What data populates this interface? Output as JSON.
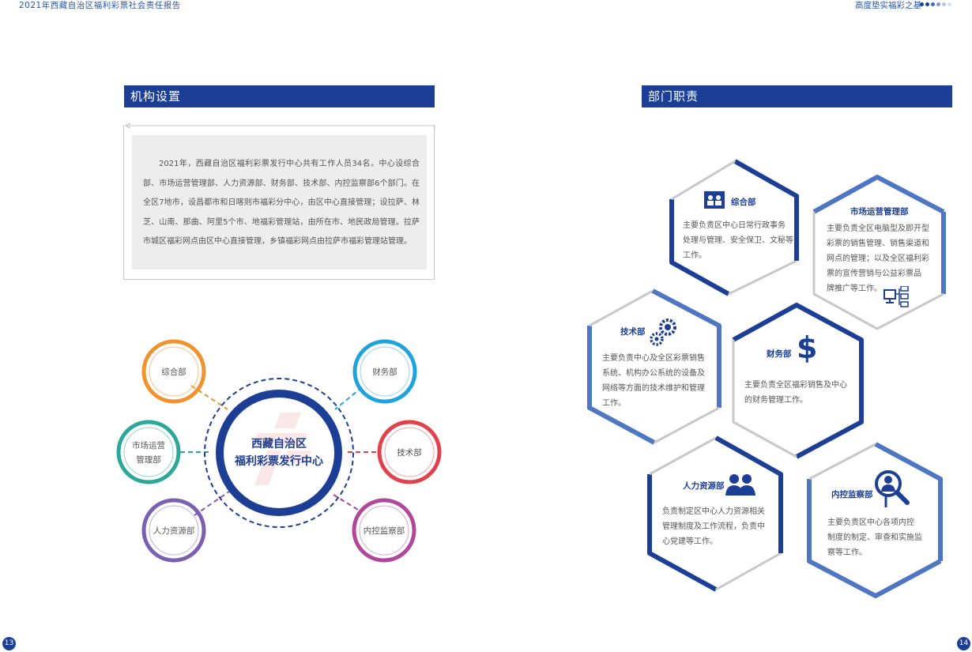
{
  "header": {
    "left_title": "2021年西藏自治区福利彩票社会责任报告",
    "right_title": "高度垫实福彩之基",
    "dot_colors": [
      "#1c3f95",
      "#1c3f95",
      "#3d6bc4",
      "#7b9bd9",
      "#b4c6ea",
      "#d8e1f3"
    ]
  },
  "page_numbers": {
    "left": "13",
    "right": "14"
  },
  "left": {
    "section_title": "机构设置",
    "intro": "2021年，西藏自治区福利彩票发行中心共有工作人员34名。中心设综合部、市场运营管理部、人力资源部、财务部、技术部、内控监察部6个部门。在全区7地市，设昌都市和日喀则市福彩分中心，由区中心直接管理；设拉萨、林芝、山南、那曲、阿里5个市、地福彩管理站，由所在市、地民政局管理。拉萨市城区福彩网点由区中心直接管理，乡镇福彩网点由拉萨市福彩管理站管理。",
    "center": {
      "line1": "西藏自治区",
      "line2": "福利彩票发行中心",
      "color": "#1c3f95"
    },
    "departments": [
      {
        "label": "综合部",
        "color": "#f0922e"
      },
      {
        "label_line1": "市场运营",
        "label_line2": "管理部",
        "color": "#2aa89a"
      },
      {
        "label": "人力资源部",
        "color": "#7b5fb0"
      },
      {
        "label": "财务部",
        "color": "#1fa3dc"
      },
      {
        "label": "技术部",
        "color": "#e0414a"
      },
      {
        "label": "内控监察部",
        "color": "#b0479a"
      }
    ]
  },
  "right": {
    "section_title": "部门职责",
    "duties": [
      {
        "title": "综合部",
        "icon": "meeting-icon",
        "lines": [
          "主要负责区中心日常行政事务",
          "处理与管理、安全保卫、文秘等",
          "工作。"
        ]
      },
      {
        "title": "市场运营管理部",
        "icon": "network-icon",
        "lines": [
          "主要负责全区电脑型及即开型",
          "彩票的销售管理、销售渠道和",
          "网点的管理；以及全区福利彩",
          "票的宣传营销与公益彩票品",
          "牌推广等工作。"
        ]
      },
      {
        "title": "技术部",
        "icon": "gears-icon",
        "lines": [
          "主要负责中心及全区彩票销售",
          "系统、机构办公系统的设备及",
          "网络等方面的技术维护和管理",
          "工作。"
        ]
      },
      {
        "title": "财务部",
        "icon": "dollar-icon",
        "lines": [
          "主要负责全区福彩销售及中心",
          "的财务管理工作。"
        ]
      },
      {
        "title": "人力资源部",
        "icon": "people-icon",
        "lines": [
          "负责制定区中心人力资源相关",
          "管理制度及工作流程，负责中",
          "心党建等工作。"
        ]
      },
      {
        "title": "内控监察部",
        "icon": "magnifier-person-icon",
        "lines": [
          "主要负责区中心各项内控",
          "制度的制定、审查和实施监",
          "察等工作。"
        ]
      }
    ]
  }
}
